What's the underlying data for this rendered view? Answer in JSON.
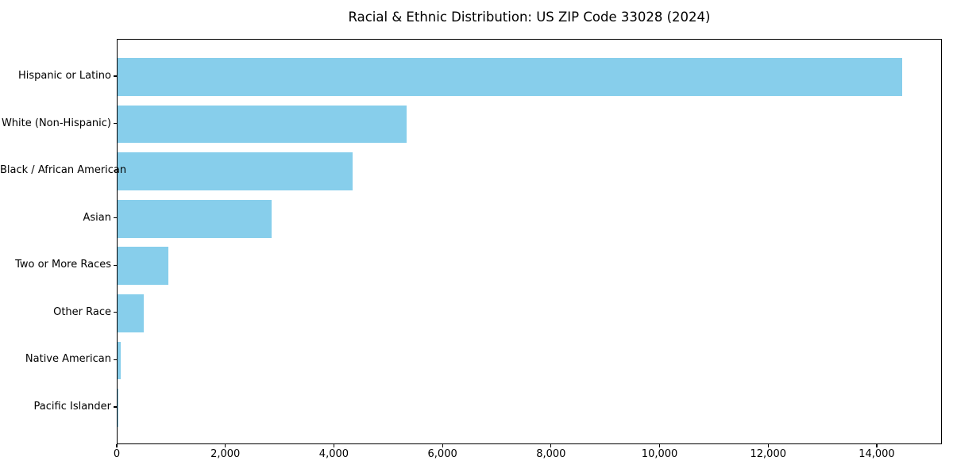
{
  "figure": {
    "background": "#ffffff"
  },
  "chart_data": {
    "type": "bar",
    "orientation": "horizontal",
    "title": "Racial & Ethnic Distribution: US ZIP Code 33028 (2024)",
    "xlabel": "",
    "ylabel": "",
    "categories": [
      "Hispanic or Latino",
      "White (Non-Hispanic)",
      "Black / African American",
      "Asian",
      "Two or More Races",
      "Other Race",
      "Native American",
      "Pacific Islander"
    ],
    "values": [
      14480,
      5340,
      4340,
      2850,
      940,
      490,
      60,
      10
    ],
    "xlim": [
      0,
      15200
    ],
    "x_ticks": [
      0,
      2000,
      4000,
      6000,
      8000,
      10000,
      12000,
      14000
    ],
    "x_tick_labels": [
      "0",
      "2,000",
      "4,000",
      "6,000",
      "8,000",
      "10,000",
      "12,000",
      "14,000"
    ],
    "bar_color": "#87CEEB",
    "axis_color": "#000000",
    "grid": false,
    "legend": null
  }
}
